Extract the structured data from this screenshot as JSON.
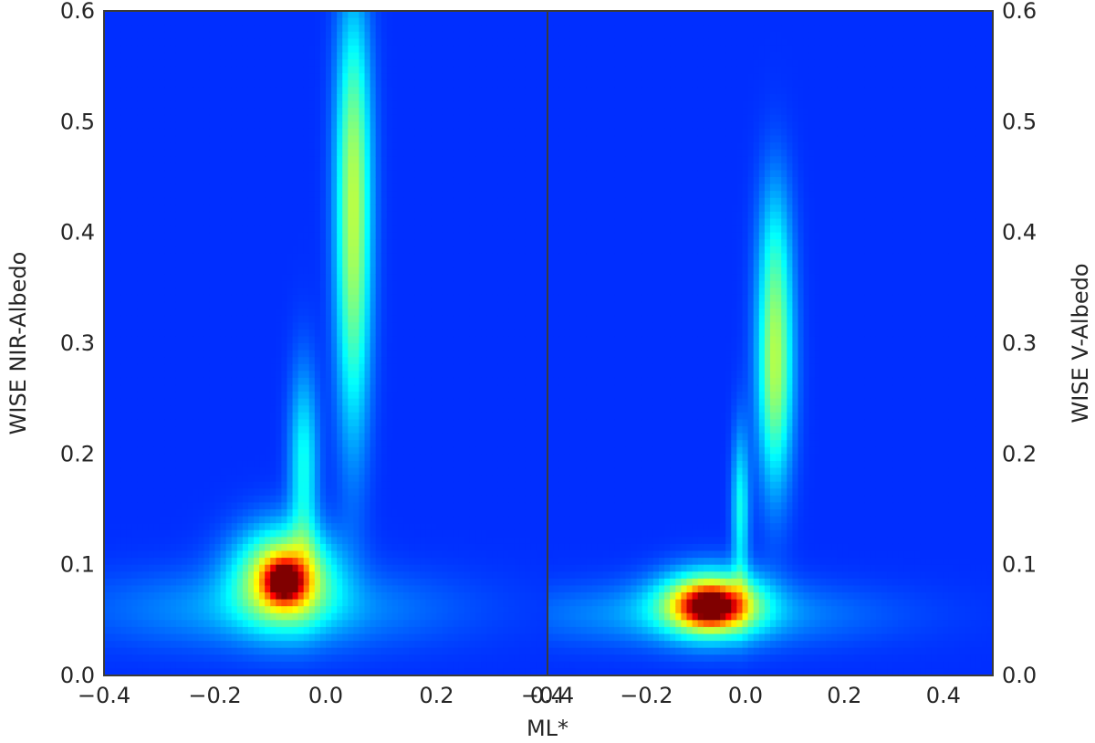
{
  "chart_data": [
    {
      "type": "heatmap",
      "panel": "left",
      "colormap": "jet",
      "xlim": [
        -0.4,
        0.4
      ],
      "ylim": [
        0.0,
        0.6
      ],
      "xticks": [
        -0.4,
        -0.2,
        0.0,
        0.2,
        0.4
      ],
      "xtick_labels": [
        "−0.4",
        "−0.2",
        "0.0",
        "0.2",
        "0.4"
      ],
      "yticks": [
        0.0,
        0.1,
        0.2,
        0.3,
        0.4,
        0.5,
        0.6
      ],
      "ytick_labels": [
        "0.0",
        "0.1",
        "0.2",
        "0.3",
        "0.4",
        "0.5",
        "0.6"
      ],
      "ylabel": "WISE NIR-Albedo",
      "ylabel_side": "left",
      "density_features": [
        {
          "x": -0.075,
          "y": 0.09,
          "sx": 0.06,
          "sy": 0.03,
          "amp": 0.5
        },
        {
          "x": -0.075,
          "y": 0.085,
          "sx": 0.022,
          "sy": 0.012,
          "amp": 0.55
        },
        {
          "x": -0.1,
          "y": 0.06,
          "sx": 0.22,
          "sy": 0.025,
          "amp": 0.12
        },
        {
          "x": -0.04,
          "y": 0.19,
          "sx": 0.018,
          "sy": 0.06,
          "amp": 0.22
        },
        {
          "x": 0.05,
          "y": 0.36,
          "sx": 0.022,
          "sy": 0.11,
          "amp": 0.3
        },
        {
          "x": 0.05,
          "y": 0.5,
          "sx": 0.022,
          "sy": 0.09,
          "amp": 0.2
        }
      ],
      "grid": false
    },
    {
      "type": "heatmap",
      "panel": "right",
      "colormap": "jet",
      "xlim": [
        -0.4,
        0.5
      ],
      "ylim": [
        0.0,
        0.6
      ],
      "xticks": [
        -0.4,
        -0.2,
        0.0,
        0.2,
        0.4
      ],
      "xtick_labels": [
        "−0.4",
        "−0.2",
        "0.0",
        "0.2",
        "0.4"
      ],
      "yticks": [
        0.0,
        0.1,
        0.2,
        0.3,
        0.4,
        0.5,
        0.6
      ],
      "ytick_labels": [
        "0.0",
        "0.1",
        "0.2",
        "0.3",
        "0.4",
        "0.5",
        "0.6"
      ],
      "ylabel": "WISE V-Albedo",
      "ylabel_side": "right",
      "density_features": [
        {
          "x": -0.07,
          "y": 0.065,
          "sx": 0.07,
          "sy": 0.02,
          "amp": 0.55
        },
        {
          "x": -0.07,
          "y": 0.062,
          "sx": 0.035,
          "sy": 0.01,
          "amp": 0.45
        },
        {
          "x": -0.1,
          "y": 0.055,
          "sx": 0.25,
          "sy": 0.02,
          "amp": 0.12
        },
        {
          "x": -0.01,
          "y": 0.15,
          "sx": 0.012,
          "sy": 0.05,
          "amp": 0.22
        },
        {
          "x": 0.06,
          "y": 0.27,
          "sx": 0.025,
          "sy": 0.07,
          "amp": 0.35
        },
        {
          "x": 0.06,
          "y": 0.38,
          "sx": 0.025,
          "sy": 0.06,
          "amp": 0.15
        }
      ],
      "grid": false
    }
  ],
  "xlabel": "ML*"
}
